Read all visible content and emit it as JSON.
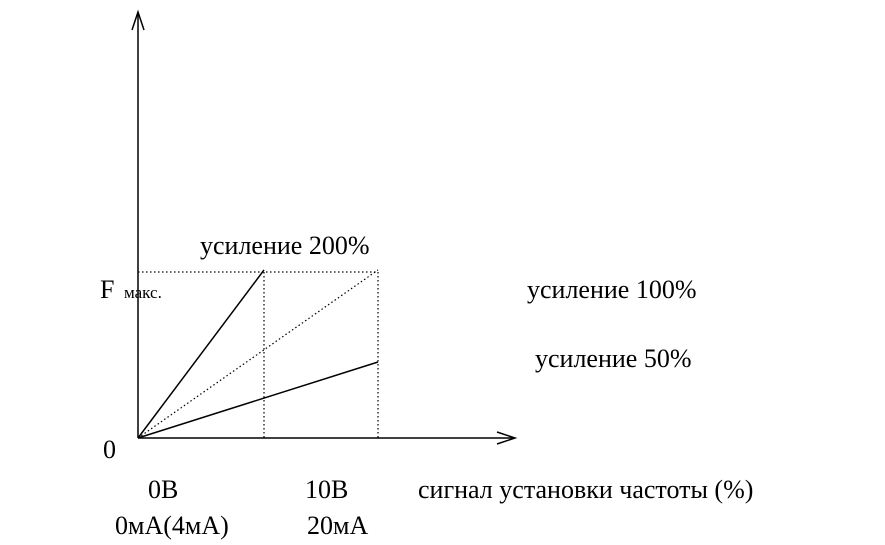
{
  "diagram": {
    "labels": {
      "gain_200": "усиление 200%",
      "gain_100": "усиление 100%",
      "gain_50": "усиление 50%",
      "f": "F",
      "fmax": "макс.",
      "origin": "0",
      "x0_voltage": "0В",
      "x1_voltage": "10В",
      "x_axis": "сигнал установки частоты (%)",
      "x0_current": "0мА(4мА)",
      "x1_current": "20мА"
    }
  }
}
